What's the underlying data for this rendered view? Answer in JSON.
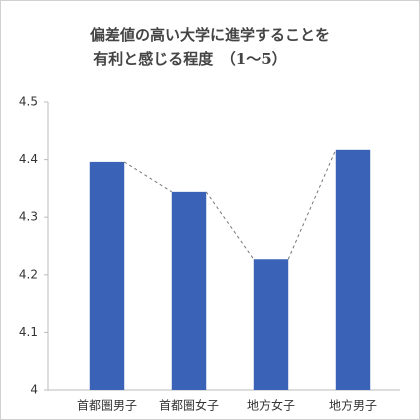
{
  "chart_data": {
    "type": "bar",
    "title": [
      "偏差値の高い大学に進学することを",
      "有利と感じる程度　（1～5）"
    ],
    "categories": [
      "首都圏男子",
      "首都圏女子",
      "地方女子",
      "地方男子"
    ],
    "values": [
      4.396,
      4.344,
      4.227,
      4.417
    ],
    "color": "#3a63b8",
    "ylim": [
      4,
      4.5
    ],
    "yticks": [
      4,
      4.1,
      4.2,
      4.3,
      4.4,
      4.5
    ],
    "connectors": true
  }
}
